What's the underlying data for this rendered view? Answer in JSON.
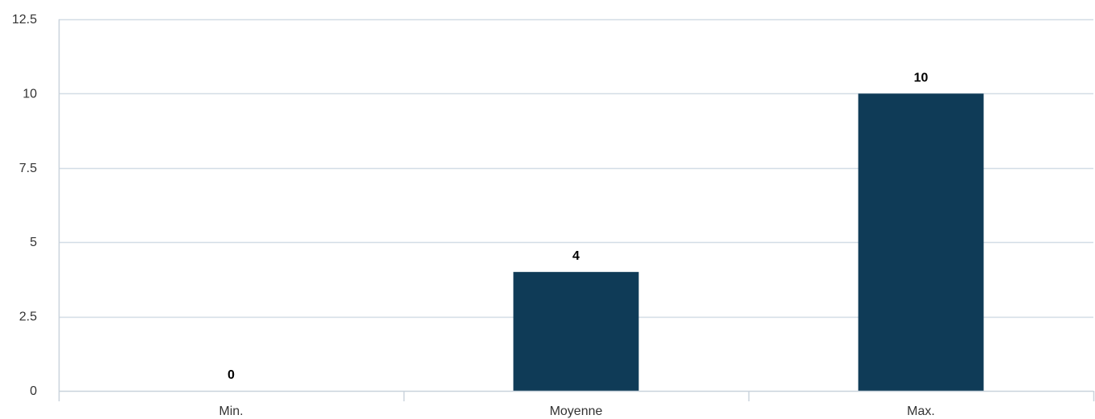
{
  "chart_data": {
    "type": "bar",
    "categories": [
      "Min.",
      "Moyenne",
      "Max."
    ],
    "values": [
      0,
      4,
      10
    ],
    "data_labels": [
      "0",
      "4",
      "10"
    ],
    "title": "",
    "xlabel": "",
    "ylabel": "",
    "ylim": [
      0,
      12.5
    ],
    "yticks": [
      0,
      2.5,
      5,
      7.5,
      10,
      12.5
    ],
    "ytick_labels": [
      "0",
      "2.5",
      "5",
      "7.5",
      "10",
      "12.5"
    ],
    "grid": true,
    "legend": "none",
    "colors": {
      "bar": "#0f3b57",
      "grid": "#d3dde6",
      "axis": "#c9d3dc",
      "tick_text": "#333333",
      "data_label_text": "#000000"
    }
  }
}
